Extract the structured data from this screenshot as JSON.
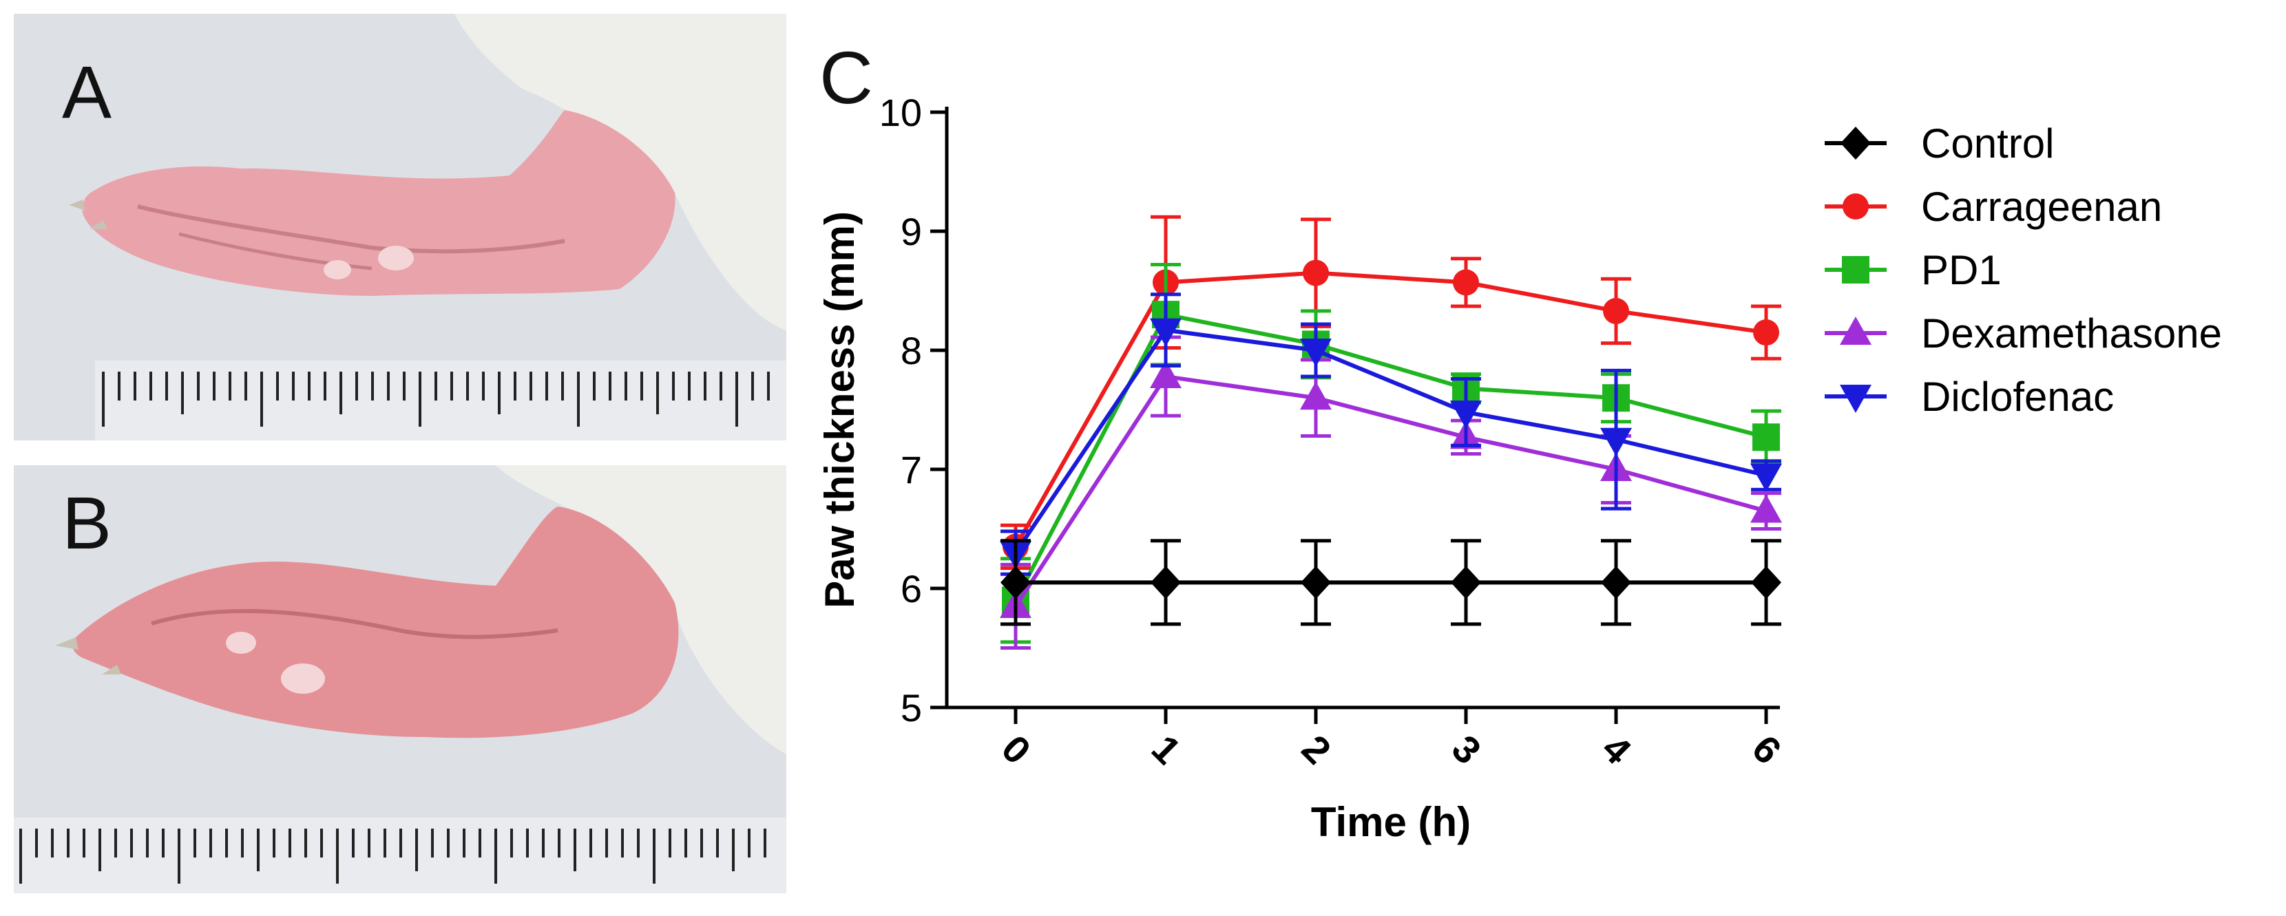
{
  "panels": {
    "a_label": "A",
    "b_label": "B",
    "c_label": "C",
    "photo_bg_color": "#dde1e6",
    "paw_color": "#e9a3aa",
    "fur_color": "#eeeeea",
    "ruler_color": "#222222"
  },
  "chart_data": {
    "type": "line",
    "title": "",
    "xlabel": "Time (h)",
    "ylabel": "Paw thickness (mm)",
    "categories": [
      "0",
      "1",
      "2",
      "3",
      "4",
      "6"
    ],
    "ylim": [
      5,
      10
    ],
    "yticks": [
      "5",
      "6",
      "7",
      "8",
      "9",
      "10"
    ],
    "legend_position": "top-right",
    "series": [
      {
        "name": "Control",
        "color": "#000000",
        "marker": "diamond",
        "values": [
          6.05,
          6.05,
          6.05,
          6.05,
          6.05,
          6.05
        ],
        "errors": [
          0.35,
          0.35,
          0.35,
          0.35,
          0.35,
          0.35
        ]
      },
      {
        "name": "Carrageenan",
        "color": "#ee1c1c",
        "marker": "circle",
        "values": [
          6.35,
          8.57,
          8.65,
          8.57,
          8.33,
          8.15
        ],
        "errors": [
          0.18,
          0.55,
          0.45,
          0.2,
          0.27,
          0.22
        ]
      },
      {
        "name": "PD1",
        "color": "#1fb51f",
        "marker": "square",
        "values": [
          5.9,
          8.3,
          8.05,
          7.68,
          7.6,
          7.27
        ],
        "errors": [
          0.35,
          0.42,
          0.28,
          0.12,
          0.2,
          0.22
        ]
      },
      {
        "name": "Dexamethasone",
        "color": "#a02ed8",
        "marker": "triangle-up",
        "values": [
          5.85,
          7.78,
          7.6,
          7.27,
          7.0,
          6.65
        ],
        "errors": [
          0.35,
          0.33,
          0.32,
          0.14,
          0.28,
          0.15
        ]
      },
      {
        "name": "Diclofenac",
        "color": "#1a1adb",
        "marker": "triangle-down",
        "values": [
          6.3,
          8.17,
          8.0,
          7.48,
          7.25,
          6.95
        ],
        "errors": [
          0.18,
          0.3,
          0.22,
          0.28,
          0.58,
          0.12
        ]
      }
    ]
  }
}
